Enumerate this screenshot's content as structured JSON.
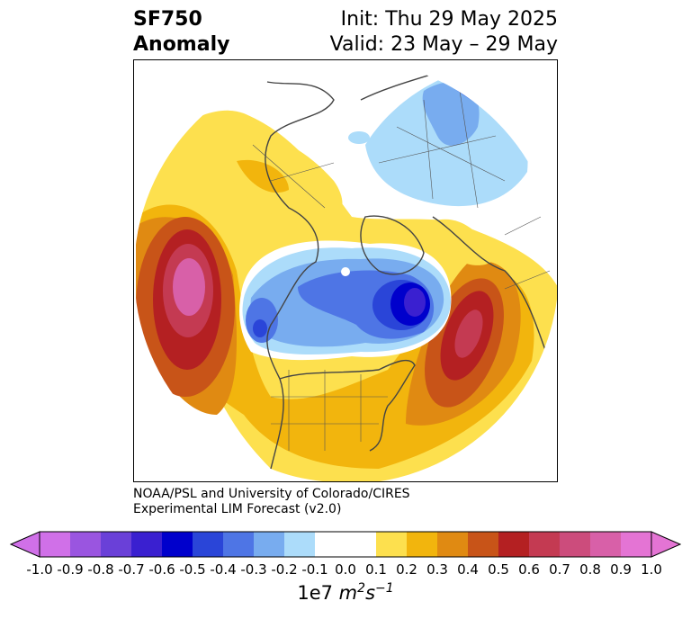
{
  "header": {
    "variable": "SF750",
    "kind": "Anomaly",
    "init": "Init: Thu 29 May 2025",
    "valid": "Valid: 23 May – 29 May"
  },
  "credit": {
    "line1": "NOAA/PSL and University of Colorado/CIRES",
    "line2": "Experimental LIM Forecast (v2.0)"
  },
  "colorbar": {
    "ticks": [
      "-1.0",
      "-0.9",
      "-0.8",
      "-0.7",
      "-0.6",
      "-0.5",
      "-0.4",
      "-0.3",
      "-0.2",
      "-0.1",
      "0.0",
      "0.1",
      "0.2",
      "0.3",
      "0.4",
      "0.5",
      "0.6",
      "0.7",
      "0.8",
      "0.9",
      "1.0"
    ],
    "colors": [
      "#d070e8",
      "#9a55e0",
      "#6a40d8",
      "#3a20d0",
      "#0000cc",
      "#2a45d8",
      "#4e75e5",
      "#78acef",
      "#acdcfa",
      "#ffffff",
      "#ffffff",
      "#fde04e",
      "#f2b50d",
      "#e08a12",
      "#c85418",
      "#b42022",
      "#c43a52",
      "#cc4c7c",
      "#d860a8",
      "#e474d4"
    ],
    "units_base": "1e7",
    "units_m": "m",
    "units_m_exp": "2",
    "units_s": "s",
    "units_s_exp": "−1"
  }
}
